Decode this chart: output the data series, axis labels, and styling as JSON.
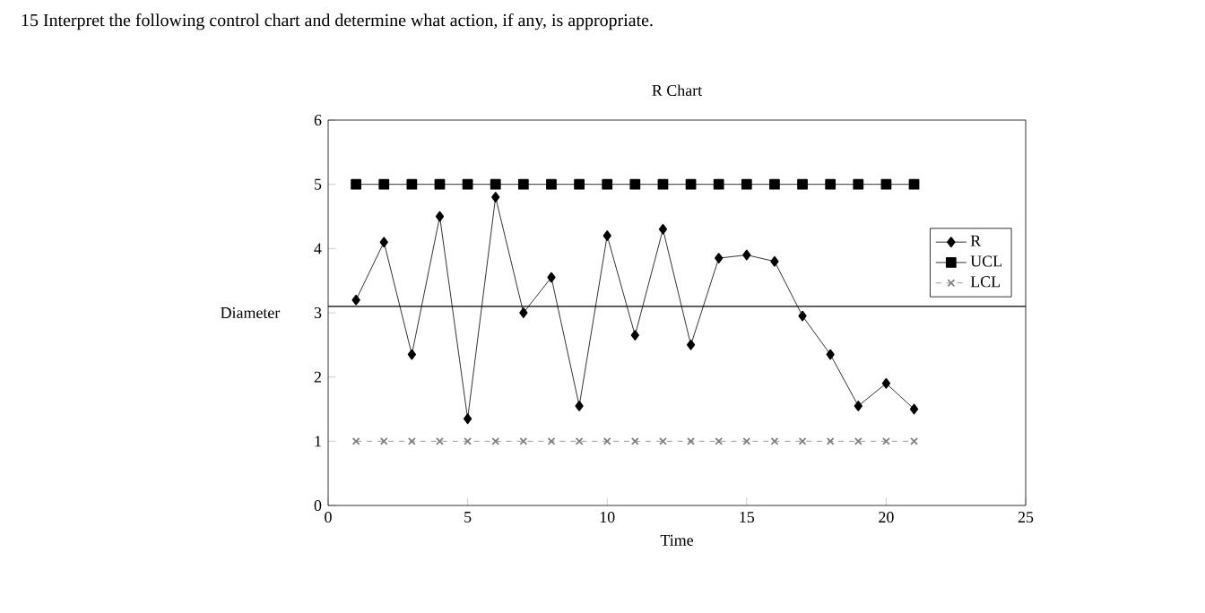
{
  "chart_data": {
    "type": "line",
    "title": "R Chart",
    "xlabel": "Time",
    "ylabel": "Diameter",
    "annotations": [
      "15   Interpret the following control chart and determine what action, if any, is appropriate."
    ],
    "x": [
      1,
      2,
      3,
      4,
      5,
      6,
      7,
      8,
      9,
      10,
      11,
      12,
      13,
      14,
      15,
      16,
      17,
      18,
      19,
      20,
      21
    ],
    "series": [
      {
        "name": "R",
        "color": "#000000",
        "marker": "diamond",
        "line_style": "solid",
        "values": [
          3.2,
          4.1,
          2.35,
          4.5,
          1.35,
          4.8,
          3.0,
          3.55,
          1.55,
          4.2,
          2.65,
          4.3,
          2.5,
          3.85,
          3.9,
          3.8,
          2.95,
          2.35,
          1.55,
          1.9,
          1.5
        ]
      },
      {
        "name": "UCL",
        "color": "#000000",
        "marker": "square",
        "line_style": "solid",
        "values": [
          5.0,
          5.0,
          5.0,
          5.0,
          5.0,
          5.0,
          5.0,
          5.0,
          5.0,
          5.0,
          5.0,
          5.0,
          5.0,
          5.0,
          5.0,
          5.0,
          5.0,
          5.0,
          5.0,
          5.0,
          5.0
        ]
      },
      {
        "name": "LCL",
        "color": "#808080",
        "marker": "cross",
        "line_style": "dashed",
        "values": [
          1.0,
          1.0,
          1.0,
          1.0,
          1.0,
          1.0,
          1.0,
          1.0,
          1.0,
          1.0,
          1.0,
          1.0,
          1.0,
          1.0,
          1.0,
          1.0,
          1.0,
          1.0,
          1.0,
          1.0,
          1.0
        ]
      }
    ],
    "ref_lines": [
      {
        "axis": "y",
        "value": 3.1,
        "color": "#000000"
      }
    ],
    "xlim": [
      0,
      25
    ],
    "ylim": [
      0,
      6
    ],
    "xticks": [
      0,
      5,
      10,
      15,
      20,
      25
    ],
    "yticks": [
      0,
      1,
      2,
      3,
      4,
      5,
      6
    ],
    "grid": false,
    "legend": "right"
  }
}
